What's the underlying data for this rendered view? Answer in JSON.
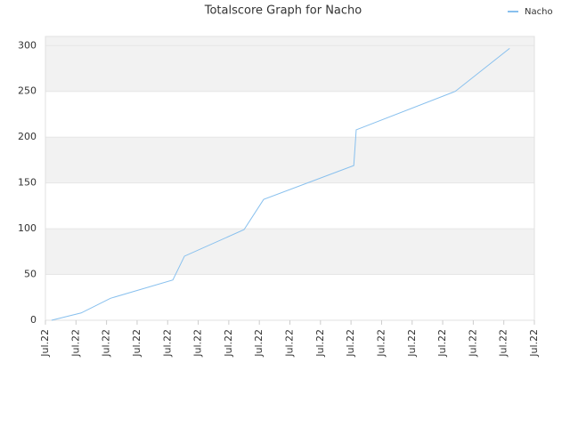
{
  "chart_data": {
    "type": "line",
    "title": "Totalscore Graph for Nacho",
    "x": [
      0.2,
      1.17,
      2.13,
      4.17,
      4.55,
      6.5,
      7.14,
      10.09,
      10.17,
      13.41,
      15.19
    ],
    "series": [
      {
        "name": "Nacho",
        "color": "#88c0ee",
        "values": [
          0,
          8,
          24,
          44,
          70,
          99,
          132,
          169,
          208,
          250,
          297
        ]
      }
    ],
    "xlim": [
      0,
      16
    ],
    "xticks": [
      {
        "value": 0,
        "label": "Jul.22"
      },
      {
        "value": 1,
        "label": "Jul.22"
      },
      {
        "value": 2,
        "label": "Jul.22"
      },
      {
        "value": 3,
        "label": "Jul.22"
      },
      {
        "value": 4,
        "label": "Jul.22"
      },
      {
        "value": 5,
        "label": "Jul.22"
      },
      {
        "value": 6,
        "label": "Jul.22"
      },
      {
        "value": 7,
        "label": "Jul.22"
      },
      {
        "value": 8,
        "label": "Jul.22"
      },
      {
        "value": 9,
        "label": "Jul.22"
      },
      {
        "value": 10,
        "label": "Jul.22"
      },
      {
        "value": 11,
        "label": "Jul.22"
      },
      {
        "value": 12,
        "label": "Jul.22"
      },
      {
        "value": 13,
        "label": "Jul.22"
      },
      {
        "value": 14,
        "label": "Jul.22"
      },
      {
        "value": 15,
        "label": "Jul.22"
      },
      {
        "value": 16,
        "label": "Jul.22"
      }
    ],
    "ylim": [
      0,
      310
    ],
    "yticks": [
      0,
      50,
      100,
      150,
      200,
      250,
      300
    ],
    "grid": true,
    "legend": "top-right"
  }
}
